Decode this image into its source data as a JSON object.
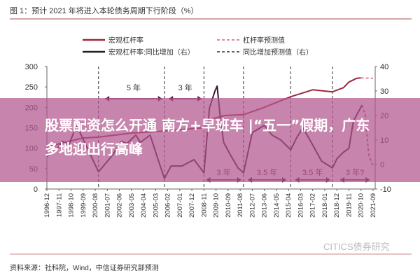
{
  "chart_data": {
    "type": "line",
    "title": "图 1：预计 2021 年将进入本轮债务周期下行阶段（%）",
    "source": "资料来源：社科院，Wind，中信证券研究部预测",
    "watermark": "CITICS债券研究",
    "x_ticks": [
      "1996-12",
      "1997-11",
      "1998-10",
      "1999-09",
      "2000-08",
      "2001-07",
      "2002-06",
      "2003-05",
      "2004-04",
      "2005-03",
      "2006-02",
      "2007-01",
      "2007-12",
      "2008-11",
      "2009-10",
      "2010-09",
      "2011-08",
      "2012-07",
      "2013-06",
      "2014-05",
      "2015-04",
      "2016-03",
      "2017-02",
      "2018-01",
      "2018-12",
      "2019-11",
      "2020-10",
      "2021-09"
    ],
    "y_left": {
      "ticks": [
        "0",
        "50",
        "100",
        "150",
        "200",
        "250",
        "300"
      ],
      "range": [
        0,
        300
      ]
    },
    "y_right": {
      "ticks": [
        "-10",
        "0",
        "10",
        "20",
        "30",
        "40"
      ],
      "range": [
        -10,
        40
      ]
    },
    "legend": [
      "宏观杠杆率",
      "杠杆率预测值",
      "宏观杠杆率:同比增加（右）",
      "同比增加预测值（右）"
    ],
    "colors": {
      "leverage": "#a0263c",
      "forecast_leverage": "#d98aa0",
      "yoy": "#3a1830",
      "forecast_yoy": "#9a6a7a",
      "annot": "#5a1840"
    },
    "series": [
      {
        "name": "宏观杠杆率",
        "axis": "left",
        "dashed": false,
        "points": [
          [
            "1996-12",
            103
          ],
          [
            "1998-08",
            117
          ],
          [
            "1999-09",
            125
          ],
          [
            "2000-11",
            127
          ],
          [
            "2003-05",
            137
          ],
          [
            "2005-11",
            142
          ],
          [
            "2008-11",
            150
          ],
          [
            "2009-06",
            172
          ],
          [
            "2010-06",
            180
          ],
          [
            "2011-11",
            182
          ],
          [
            "2013-06",
            200
          ],
          [
            "2015-06",
            226
          ],
          [
            "2017-02",
            243
          ],
          [
            "2018-08",
            238
          ],
          [
            "2019-03",
            245
          ],
          [
            "2019-06",
            248
          ],
          [
            "2019-11",
            262
          ],
          [
            "2020-06",
            271
          ],
          [
            "2020-10",
            272
          ]
        ]
      },
      {
        "name": "杠杆率预测值",
        "axis": "left",
        "dashed": true,
        "points": [
          [
            "2020-10",
            272
          ],
          [
            "2021-09",
            271
          ]
        ]
      },
      {
        "name": "宏观杠杆率:同比增加（右）",
        "axis": "right",
        "dashed": false,
        "points": [
          [
            "1996-12",
            3.4
          ],
          [
            "1997-07",
            5
          ],
          [
            "1998-02",
            9.4
          ],
          [
            "1998-08",
            8
          ],
          [
            "1999-03",
            16
          ],
          [
            "2000-11",
            -3
          ],
          [
            "2001-11",
            3.4
          ],
          [
            "2002-08",
            9.4
          ],
          [
            "2003-01",
            8.6
          ],
          [
            "2003-09",
            12
          ],
          [
            "2004-01",
            9
          ],
          [
            "2004-10",
            12
          ],
          [
            "2005-05",
            2.3
          ],
          [
            "2005-11",
            -5.7
          ],
          [
            "2006-05",
            -0.6
          ],
          [
            "2007-03",
            -0.6
          ],
          [
            "2008-02",
            2
          ],
          [
            "2008-11",
            -3.4
          ],
          [
            "2009-04",
            23
          ],
          [
            "2009-09",
            30
          ],
          [
            "2009-11",
            32
          ],
          [
            "2010-02",
            18.6
          ],
          [
            "2010-05",
            9
          ],
          [
            "2010-11",
            4
          ],
          [
            "2011-06",
            -1.4
          ],
          [
            "2011-11",
            -3.4
          ],
          [
            "2012-07",
            13
          ],
          [
            "2013-06",
            16
          ],
          [
            "2014-01",
            12
          ],
          [
            "2014-09",
            10
          ],
          [
            "2015-06",
            6
          ],
          [
            "2015-11",
            10.6
          ],
          [
            "2016-05",
            15
          ],
          [
            "2017-02",
            8
          ],
          [
            "2017-10",
            1.4
          ],
          [
            "2018-08",
            -1.4
          ],
          [
            "2018-12",
            2.3
          ],
          [
            "2019-06",
            5
          ],
          [
            "2019-11",
            6.6
          ],
          [
            "2020-03",
            17.7
          ],
          [
            "2020-11",
            24.3
          ]
        ]
      },
      {
        "name": "同比增加预测值（右）",
        "axis": "right",
        "dashed": true,
        "points": [
          [
            "2020-11",
            24.3
          ],
          [
            "2021-02",
            20
          ],
          [
            "2021-05",
            4
          ],
          [
            "2021-09",
            -0.6
          ]
        ]
      }
    ],
    "cycle_lines": [
      "2000-11",
      "2005-11",
      "2008-11",
      "2011-11",
      "2015-06",
      "2018-08"
    ],
    "annotations": [
      {
        "label": "5 年",
        "from": "2001-05",
        "to": "2005-09",
        "pos": "top"
      },
      {
        "label": "3 年",
        "from": "2006-03",
        "to": "2008-09",
        "pos": "top"
      },
      {
        "label": "3 年",
        "from": "2009-01",
        "to": "2011-09",
        "pos": "bottom"
      },
      {
        "label": "3.5 年",
        "from": "2012-03",
        "to": "2015-02",
        "pos": "bottom"
      },
      {
        "label": "3.5 年",
        "from": "2015-10",
        "to": "2018-06",
        "pos": "bottom"
      },
      {
        "label": "3 年?",
        "from": "2019-03",
        "to": "2021-06",
        "pos": "bottom"
      }
    ]
  },
  "overlay": {
    "headline": "股票配资怎么开通 南方+早班车 |“五一”假期，广东多地迎出行高峰"
  }
}
